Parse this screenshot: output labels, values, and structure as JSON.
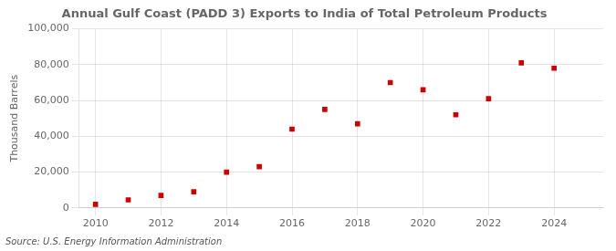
{
  "chart_data": {
    "type": "scatter",
    "title": "Annual Gulf Coast (PADD 3) Exports to India of Total Petroleum Products",
    "ylabel": "Thousand Barrels",
    "annotation": "Source: U.S. Energy Information Administration",
    "x": [
      2010,
      2011,
      2012,
      2013,
      2014,
      2015,
      2016,
      2017,
      2018,
      2019,
      2020,
      2021,
      2022,
      2023,
      2024
    ],
    "values": [
      2000,
      4500,
      7000,
      9000,
      20000,
      23000,
      44000,
      55000,
      47000,
      70000,
      66000,
      52000,
      61000,
      81000,
      78000
    ],
    "color": "#cc0000",
    "marker": "square",
    "xlim": [
      2009.5,
      2025.5
    ],
    "xticks": [
      2010,
      2012,
      2014,
      2016,
      2018,
      2020,
      2022,
      2024
    ],
    "ylim": [
      0,
      100000
    ],
    "yticks": [
      0,
      {
        "value": 20000,
        "label": "20,000"
      },
      {
        "value": 40000,
        "label": "40,000"
      },
      {
        "value": 60000,
        "label": "60,000"
      },
      {
        "value": 80000,
        "label": "80,000"
      },
      {
        "value": 100000,
        "label": "100,000"
      }
    ],
    "grid": true
  }
}
